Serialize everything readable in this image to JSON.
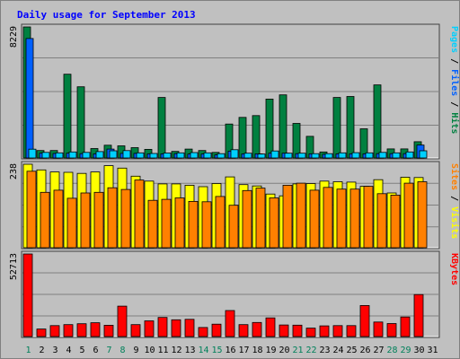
{
  "chart_data": {
    "type": "bar",
    "title": "Daily usage for September 2013",
    "days": [
      "1",
      "2",
      "3",
      "4",
      "5",
      "6",
      "7",
      "8",
      "9",
      "10",
      "11",
      "12",
      "13",
      "14",
      "15",
      "16",
      "17",
      "18",
      "19",
      "20",
      "21",
      "22",
      "23",
      "24",
      "25",
      "26",
      "27",
      "28",
      "29",
      "30",
      "31"
    ],
    "weekend_days": [
      "1",
      "7",
      "8",
      "14",
      "15",
      "21",
      "22",
      "28",
      "29"
    ],
    "panels": [
      {
        "name": "hits-files-pages",
        "max_label": "8229",
        "ymax": 8229,
        "series": [
          {
            "name": "Hits",
            "color": "#008040",
            "values": [
              8229,
              470,
              470,
              5260,
              4470,
              590,
              800,
              760,
              650,
              540,
              3800,
              410,
              560,
              470,
              350,
              2130,
              2550,
              2660,
              3700,
              3960,
              2170,
              1360,
              380,
              3800,
              3860,
              1830,
              4590,
              570,
              570,
              1020,
              0
            ]
          },
          {
            "name": "Files",
            "color": "#0060ff",
            "values": [
              7500,
              300,
              280,
              300,
              270,
              260,
              560,
              290,
              290,
              260,
              260,
              270,
              250,
              250,
              200,
              430,
              260,
              260,
              300,
              300,
              270,
              260,
              230,
              260,
              260,
              260,
              270,
              270,
              270,
              810,
              0
            ]
          },
          {
            "name": "Pages",
            "color": "#00d0ff",
            "values": [
              550,
              350,
              320,
              380,
              350,
              400,
              450,
              460,
              320,
              280,
              310,
              320,
              340,
              320,
              270,
              520,
              300,
              250,
              440,
              300,
              300,
              270,
              270,
              320,
              330,
              320,
              350,
              320,
              380,
              450,
              0
            ]
          }
        ]
      },
      {
        "name": "visits-sites",
        "max_label": "238",
        "ymax": 238,
        "series": [
          {
            "name": "Visits",
            "color": "#ffff00",
            "values": [
              238,
              222,
              216,
              215,
              212,
              216,
              234,
              227,
              204,
              190,
              182,
              182,
              178,
              174,
              183,
              202,
              180,
              176,
              153,
              148,
              182,
              183,
              190,
              188,
              187,
              175,
              194,
              156,
              201,
              200,
              0
            ]
          },
          {
            "name": "Sites",
            "color": "#ff8000",
            "values": [
              218,
              158,
              164,
              141,
              156,
              158,
              171,
              166,
              193,
              135,
              138,
              142,
              132,
              131,
              146,
              121,
              163,
              170,
              142,
              178,
              184,
              164,
              172,
              167,
              167,
              175,
              154,
              150,
              184,
              188,
              0
            ]
          }
        ]
      },
      {
        "name": "kbytes",
        "max_label": "52713",
        "ymax": 52713,
        "series": [
          {
            "name": "KBytes",
            "color": "#ff0000",
            "values": [
              52713,
              4800,
              7000,
              7600,
              8200,
              8800,
              7200,
              19400,
              7600,
              10000,
              12200,
              10700,
              11000,
              5800,
              7900,
              16600,
              7600,
              9000,
              11900,
              7400,
              7300,
              5400,
              6800,
              7000,
              7000,
              19800,
              9300,
              8300,
              12500,
              26800,
              0
            ]
          }
        ]
      }
    ],
    "legend_placement": "right, vertical, one per panel"
  }
}
